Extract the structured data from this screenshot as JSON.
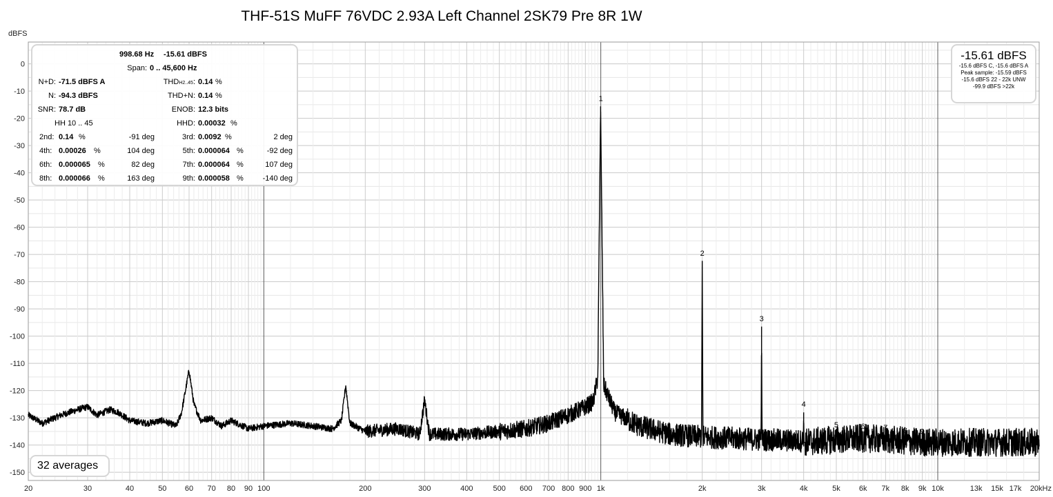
{
  "chart_data": {
    "type": "line",
    "title": "THF-51S MuFF 76VDC 2.93A Left Channel 2SK79 Pre 8R 1W",
    "ylabel": "dBFS",
    "xlabel": "",
    "x_scale": "log",
    "xlim": [
      20,
      20000
    ],
    "ylim": [
      -153,
      8
    ],
    "grid": true,
    "y_ticks": [
      "0",
      "-10",
      "-20",
      "-30",
      "-40",
      "-50",
      "-60",
      "-70",
      "-80",
      "-90",
      "-100",
      "-110",
      "-120",
      "-130",
      "-140",
      "-150"
    ],
    "x_ticks": [
      {
        "v": 20,
        "label": "20"
      },
      {
        "v": 30,
        "label": "30"
      },
      {
        "v": 40,
        "label": "40"
      },
      {
        "v": 50,
        "label": "50"
      },
      {
        "v": 60,
        "label": "60"
      },
      {
        "v": 70,
        "label": "70"
      },
      {
        "v": 80,
        "label": "80"
      },
      {
        "v": 90,
        "label": "90"
      },
      {
        "v": 100,
        "label": "100"
      },
      {
        "v": 200,
        "label": "200"
      },
      {
        "v": 300,
        "label": "300"
      },
      {
        "v": 400,
        "label": "400"
      },
      {
        "v": 500,
        "label": "500"
      },
      {
        "v": 600,
        "label": "600"
      },
      {
        "v": 700,
        "label": "700"
      },
      {
        "v": 800,
        "label": "800"
      },
      {
        "v": 900,
        "label": "900"
      },
      {
        "v": 1000,
        "label": "1k"
      },
      {
        "v": 2000,
        "label": "2k"
      },
      {
        "v": 3000,
        "label": "3k"
      },
      {
        "v": 4000,
        "label": "4k"
      },
      {
        "v": 5000,
        "label": "5k"
      },
      {
        "v": 6000,
        "label": "6k"
      },
      {
        "v": 7000,
        "label": "7k"
      },
      {
        "v": 8000,
        "label": "8k"
      },
      {
        "v": 9000,
        "label": "9k"
      },
      {
        "v": 10000,
        "label": "10k"
      },
      {
        "v": 13000,
        "label": "13k"
      },
      {
        "v": 15000,
        "label": "15k"
      },
      {
        "v": 17000,
        "label": "17k"
      },
      {
        "v": 20000,
        "label": "20kHz"
      }
    ],
    "series": [
      {
        "points": [
          [
            20,
            -129
          ],
          [
            22,
            -132
          ],
          [
            25,
            -129
          ],
          [
            28,
            -127
          ],
          [
            30,
            -126
          ],
          [
            32,
            -129
          ],
          [
            35,
            -127
          ],
          [
            37,
            -128
          ],
          [
            40,
            -131
          ],
          [
            45,
            -132
          ],
          [
            50,
            -131
          ],
          [
            55,
            -133
          ],
          [
            57,
            -128
          ],
          [
            60,
            -112.5
          ],
          [
            62,
            -125
          ],
          [
            65,
            -131
          ],
          [
            70,
            -130
          ],
          [
            75,
            -133
          ],
          [
            80,
            -131
          ],
          [
            90,
            -134
          ],
          [
            100,
            -133
          ],
          [
            120,
            -132
          ],
          [
            140,
            -133
          ],
          [
            160,
            -134
          ],
          [
            170,
            -131
          ],
          [
            175,
            -118
          ],
          [
            180,
            -132
          ],
          [
            200,
            -135
          ],
          [
            250,
            -134
          ],
          [
            290,
            -136
          ],
          [
            300,
            -123.5
          ],
          [
            310,
            -136
          ],
          [
            400,
            -136
          ],
          [
            500,
            -135
          ],
          [
            600,
            -134
          ],
          [
            700,
            -132
          ],
          [
            800,
            -129
          ],
          [
            900,
            -126
          ],
          [
            950,
            -124
          ],
          [
            980,
            -115
          ],
          [
            990,
            -60
          ],
          [
            998.68,
            -15.61
          ],
          [
            1010,
            -70
          ],
          [
            1020,
            -118
          ],
          [
            1100,
            -128
          ],
          [
            1300,
            -133
          ],
          [
            1600,
            -136
          ],
          [
            1990,
            -137
          ],
          [
            2000,
            -72.5
          ],
          [
            2010,
            -137
          ],
          [
            2990,
            -138
          ],
          [
            3000,
            -96.5
          ],
          [
            3010,
            -138
          ],
          [
            3990,
            -138.5
          ],
          [
            4000,
            -128
          ],
          [
            4010,
            -139
          ],
          [
            5000,
            -138
          ],
          [
            6000,
            -137.5
          ],
          [
            7000,
            -138
          ],
          [
            8000,
            -138.5
          ],
          [
            9000,
            -139
          ],
          [
            10000,
            -139
          ],
          [
            13000,
            -139
          ],
          [
            15000,
            -139
          ],
          [
            17000,
            -139
          ],
          [
            20000,
            -139
          ]
        ]
      }
    ],
    "harmonic_markers": [
      {
        "label": "1",
        "x": 1000,
        "y": -15.61
      },
      {
        "label": "2",
        "x": 2000,
        "y": -72.5
      },
      {
        "label": "3",
        "x": 3000,
        "y": -96.5
      },
      {
        "label": "4",
        "x": 4000,
        "y": -128
      },
      {
        "label": "5",
        "x": 5000,
        "y": -135.5
      },
      {
        "label": "6",
        "x": 6000,
        "y": -136
      },
      {
        "label": "7",
        "x": 7000,
        "y": -136.5
      },
      {
        "label": "8",
        "x": 8000,
        "y": -137.5
      },
      {
        "label": "9",
        "x": 9000,
        "y": -138
      }
    ]
  },
  "stats": {
    "header_freq": "998.68 Hz",
    "header_level": "-15.61 dBFS",
    "span_label": "Span:",
    "span_value": "0 .. 45,600 Hz",
    "nd_label": "N+D:",
    "nd_value": "-71.5 dBFS A",
    "thd_label_main": "THD",
    "thd_label_sub": "H2..45",
    "thd_label_colon": ":",
    "thd_value": "0.14",
    "pct": "%",
    "n_label": "N:",
    "n_value": "-94.3 dBFS",
    "thdn_label": "THD+N:",
    "thdn_value": "0.14",
    "snr_label": "SNR:",
    "snr_value": "78.7 dB",
    "enob_label": "ENOB:",
    "enob_value": "12.3 bits",
    "hh_label": "HH 10 .. 45",
    "hhd_label": "HHD:",
    "hhd_value": "0.00032",
    "harmonics": [
      {
        "label": "2nd:",
        "pct": "0.14",
        "phase": "-91 deg"
      },
      {
        "label": "3rd:",
        "pct": "0.0092",
        "phase": "2 deg"
      },
      {
        "label": "4th:",
        "pct": "0.00026",
        "phase": "104 deg"
      },
      {
        "label": "5th:",
        "pct": "0.000064",
        "phase": "-92 deg"
      },
      {
        "label": "6th:",
        "pct": "0.000065",
        "phase": "82 deg"
      },
      {
        "label": "7th:",
        "pct": "0.000064",
        "phase": "107 deg"
      },
      {
        "label": "8th:",
        "pct": "0.000066",
        "phase": "163 deg"
      },
      {
        "label": "9th:",
        "pct": "0.000058",
        "phase": "-140 deg"
      }
    ]
  },
  "peak": {
    "big": "-15.61 dBFS",
    "lines": [
      "-15.6 dBFS C, -15.6 dBFS A",
      "Peak sample: -15.59 dBFS",
      "-15.6 dBFS 22 - 22k UNW",
      "-99.9 dBFS >22k"
    ]
  },
  "averages": "32 averages"
}
